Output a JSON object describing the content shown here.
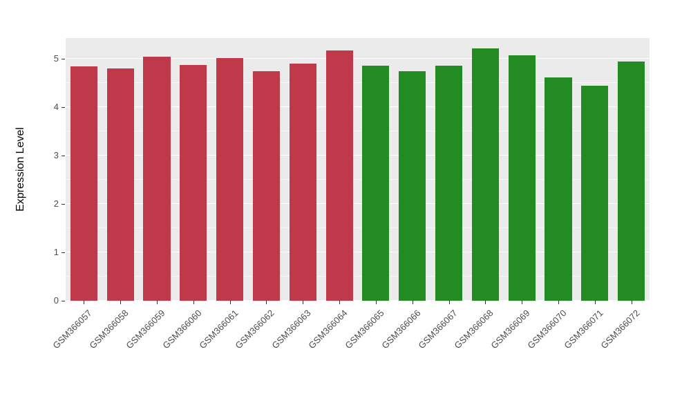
{
  "chart_data": {
    "type": "bar",
    "title": "",
    "xlabel": "",
    "ylabel": "Expression Level",
    "categories": [
      "GSM366057",
      "GSM366058",
      "GSM366059",
      "GSM366060",
      "GSM366061",
      "GSM366062",
      "GSM366063",
      "GSM366064",
      "GSM366065",
      "GSM366066",
      "GSM366067",
      "GSM366068",
      "GSM366069",
      "GSM366070",
      "GSM366071",
      "GSM366072"
    ],
    "values": [
      4.85,
      4.8,
      5.05,
      4.88,
      5.02,
      4.75,
      4.9,
      5.18,
      4.86,
      4.75,
      4.86,
      5.21,
      5.08,
      4.62,
      4.45,
      4.94
    ],
    "bar_colors": [
      "#C0394B",
      "#C0394B",
      "#C0394B",
      "#C0394B",
      "#C0394B",
      "#C0394B",
      "#C0394B",
      "#C0394B",
      "#228B22",
      "#228B22",
      "#228B22",
      "#228B22",
      "#228B22",
      "#228B22",
      "#228B22",
      "#228B22"
    ],
    "yticks": [
      0,
      1,
      2,
      3,
      4,
      5
    ],
    "ylim": [
      0,
      5.43
    ],
    "grid": "on",
    "legend": "none"
  },
  "style": {
    "panel_bg": "#EBEBEB",
    "grid_color": "#FFFFFF",
    "tick_label_color": "#4D4D4D",
    "axis_title_color": "#000000"
  }
}
